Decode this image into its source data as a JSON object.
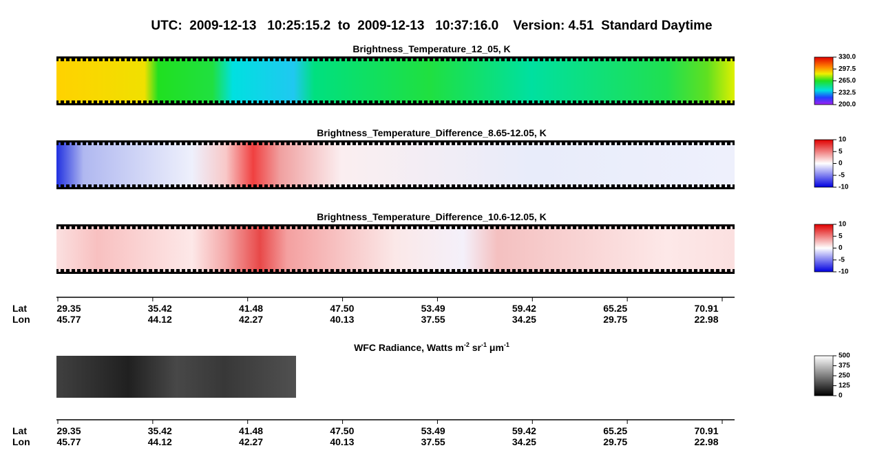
{
  "header": {
    "title": "UTC:  2009-12-13   10:25:15.2  to  2009-12-13   10:37:16.0    Version: 4.51  Standard Daytime"
  },
  "panels": [
    {
      "title": "Brightness_Temperature_12_05, K",
      "colorbar": [
        "330.0",
        "297.5",
        "265.0",
        "232.5",
        "200.0"
      ]
    },
    {
      "title": "Brightness_Temperature_Difference_8.65-12.05, K",
      "colorbar": [
        "10",
        "5",
        "0",
        "-5",
        "-10"
      ]
    },
    {
      "title": "Brightness_Temperature_Difference_10.6-12.05, K",
      "colorbar": [
        "10",
        "5",
        "0",
        "-5",
        "-10"
      ]
    }
  ],
  "wfc": {
    "title": [
      "WFC Radiance, Watts m",
      "-2",
      " sr",
      "-1",
      " μm",
      "-1"
    ],
    "colorbar": [
      "500",
      "375",
      "250",
      "125",
      "0"
    ]
  },
  "axes": [
    {
      "lat_label": "Lat",
      "lon_label": "Lon",
      "lat": [
        "29.35",
        "35.42",
        "41.48",
        "47.50",
        "53.49",
        "59.42",
        "65.25",
        "70.91"
      ],
      "lon": [
        "45.77",
        "44.12",
        "42.27",
        "40.13",
        "37.55",
        "34.25",
        "29.75",
        "22.98"
      ]
    },
    {
      "lat_label": "Lat",
      "lon_label": "Lon",
      "lat": [
        "29.35",
        "35.42",
        "41.48",
        "47.50",
        "53.49",
        "59.42",
        "65.25",
        "70.91"
      ],
      "lon": [
        "45.77",
        "44.12",
        "42.27",
        "40.13",
        "37.55",
        "34.25",
        "29.75",
        "22.98"
      ]
    }
  ]
}
